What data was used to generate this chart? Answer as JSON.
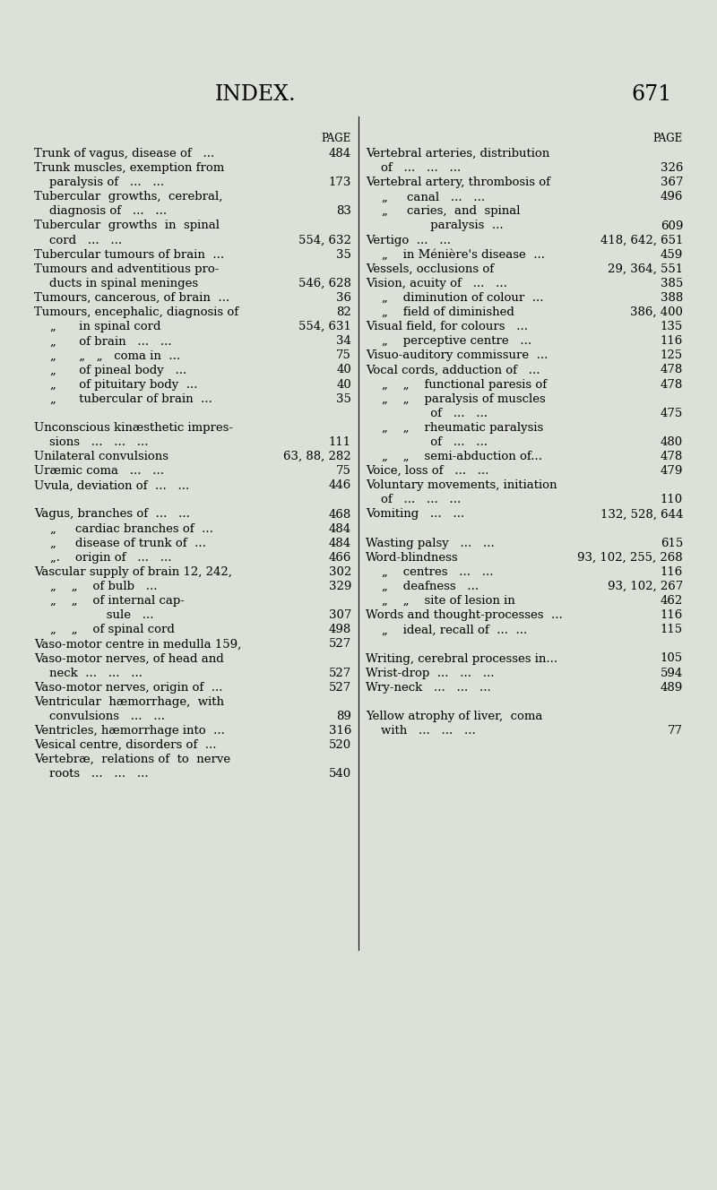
{
  "background_color": "#dde0d8",
  "title": "INDEX.",
  "page_number": "671",
  "fig_width": 8.0,
  "fig_height": 13.28,
  "dpi": 100,
  "left_entries": [
    {
      "text": "Trunk of vagus, disease of   ...",
      "page": "484",
      "indent": 0
    },
    {
      "text": "Trunk muscles, exemption from",
      "page": "",
      "indent": 0
    },
    {
      "text": "    paralysis of   ...   ...",
      "page": "173",
      "indent": 0
    },
    {
      "text": "Tubercular  growths,  cerebral,",
      "page": "",
      "indent": 0
    },
    {
      "text": "    diagnosis of   ...   ...",
      "page": "83",
      "indent": 0
    },
    {
      "text": "Tubercular  growths  in  spinal",
      "page": "",
      "indent": 0
    },
    {
      "text": "    cord   ...   ...",
      "page": "554, 632",
      "indent": 0
    },
    {
      "text": "Tubercular tumours of brain  ...",
      "page": "35",
      "indent": 0
    },
    {
      "text": "Tumours and adventitious pro-",
      "page": "",
      "indent": 0
    },
    {
      "text": "    ducts in spinal meninges",
      "page": "546, 628",
      "indent": 0
    },
    {
      "text": "Tumours, cancerous, of brain  ...",
      "page": "36",
      "indent": 0
    },
    {
      "text": "Tumours, encephalic, diagnosis of",
      "page": "82",
      "indent": 0
    },
    {
      "text": "„      in spinal cord",
      "page": "554, 631",
      "indent": 1
    },
    {
      "text": "„      of brain   ...   ...",
      "page": "34",
      "indent": 1
    },
    {
      "text": "„      „   „   coma in  ...",
      "page": "75",
      "indent": 1
    },
    {
      "text": "„      of pineal body   ...",
      "page": "40",
      "indent": 1
    },
    {
      "text": "„      of pituitary body  ...",
      "page": "40",
      "indent": 1
    },
    {
      "text": "„      tubercular of brain  ...",
      "page": "35",
      "indent": 1
    },
    {
      "text": "",
      "page": "",
      "indent": 0
    },
    {
      "text": "Unconscious kinæsthetic impres-",
      "page": "",
      "indent": 0
    },
    {
      "text": "    sions   ...   ...   ...",
      "page": "111",
      "indent": 0
    },
    {
      "text": "Unilateral convulsions",
      "page": "63, 88, 282",
      "indent": 0
    },
    {
      "text": "Uræmic coma   ...   ...",
      "page": "75",
      "indent": 0
    },
    {
      "text": "Uvula, deviation of  ...   ...",
      "page": "446",
      "indent": 0
    },
    {
      "text": "",
      "page": "",
      "indent": 0
    },
    {
      "text": "Vagus, branches of  ...   ...",
      "page": "468",
      "indent": 0
    },
    {
      "text": "„     cardiac branches of  ...",
      "page": "484",
      "indent": 1
    },
    {
      "text": "„     disease of trunk of  ...",
      "page": "484",
      "indent": 1
    },
    {
      "text": "„.    origin of   ...   ...",
      "page": "466",
      "indent": 1
    },
    {
      "text": "Vascular supply of brain 12, 242,",
      "page": "302",
      "indent": 0
    },
    {
      "text": "„    „    of bulb   ...",
      "page": "329",
      "indent": 1
    },
    {
      "text": "„    „    of internal cap-",
      "page": "",
      "indent": 1
    },
    {
      "text": "                   sule   ...",
      "page": "307",
      "indent": 0
    },
    {
      "text": "„    „    of spinal cord",
      "page": "498",
      "indent": 1
    },
    {
      "text": "Vaso-motor centre in medulla 159,",
      "page": "527",
      "indent": 0
    },
    {
      "text": "Vaso-motor nerves, of head and",
      "page": "",
      "indent": 0
    },
    {
      "text": "    neck  ...   ...   ...",
      "page": "527",
      "indent": 0
    },
    {
      "text": "Vaso-motor nerves, origin of  ...",
      "page": "527",
      "indent": 0
    },
    {
      "text": "Ventricular  hæmorrhage,  with",
      "page": "",
      "indent": 0
    },
    {
      "text": "    convulsions   ...   ...",
      "page": "89",
      "indent": 0
    },
    {
      "text": "Ventricles, hæmorrhage into  ...",
      "page": "316",
      "indent": 0
    },
    {
      "text": "Vesical centre, disorders of  ...",
      "page": "520",
      "indent": 0
    },
    {
      "text": "Vertebræ,  relations of  to  nerve",
      "page": "",
      "indent": 0
    },
    {
      "text": "    roots   ...   ...   ...",
      "page": "540",
      "indent": 0
    }
  ],
  "right_entries": [
    {
      "text": "Vertebral arteries, distribution",
      "page": "",
      "indent": 0
    },
    {
      "text": "    of   ...   ...   ...",
      "page": "326",
      "indent": 0
    },
    {
      "text": "Vertebral artery, thrombosis of",
      "page": "367",
      "indent": 0
    },
    {
      "text": "„     canal   ...   ...",
      "page": "496",
      "indent": 1
    },
    {
      "text": "„     caries,  and  spinal",
      "page": "",
      "indent": 1
    },
    {
      "text": "                 paralysis  ...",
      "page": "609",
      "indent": 0
    },
    {
      "text": "Vertigo  ...   ...",
      "page": "418, 642, 651",
      "indent": 0
    },
    {
      "text": "„    in Ménière's disease  ...",
      "page": "459",
      "indent": 1
    },
    {
      "text": "Vessels, occlusions of",
      "page": "29, 364, 551",
      "indent": 0
    },
    {
      "text": "Vision, acuity of   ...   ...",
      "page": "385",
      "indent": 0
    },
    {
      "text": "„    diminution of colour  ...",
      "page": "388",
      "indent": 1
    },
    {
      "text": "„    field of diminished",
      "page": "386, 400",
      "indent": 1
    },
    {
      "text": "Visual field, for colours   ...",
      "page": "135",
      "indent": 0
    },
    {
      "text": "„    perceptive centre   ...",
      "page": "116",
      "indent": 1
    },
    {
      "text": "Visuo-auditory commissure  ...",
      "page": "125",
      "indent": 0
    },
    {
      "text": "Vocal cords, adduction of   ...",
      "page": "478",
      "indent": 0
    },
    {
      "text": "„    „    functional paresis of",
      "page": "478",
      "indent": 1
    },
    {
      "text": "„    „    paralysis of muscles",
      "page": "",
      "indent": 1
    },
    {
      "text": "                 of   ...   ...",
      "page": "475",
      "indent": 0
    },
    {
      "text": "„    „    rheumatic paralysis",
      "page": "",
      "indent": 1
    },
    {
      "text": "                 of   ...   ...",
      "page": "480",
      "indent": 0
    },
    {
      "text": "„    „    semi-abduction of...",
      "page": "478",
      "indent": 1
    },
    {
      "text": "Voice, loss of   ...   ...",
      "page": "479",
      "indent": 0
    },
    {
      "text": "Voluntary movements, initiation",
      "page": "",
      "indent": 0
    },
    {
      "text": "    of   ...   ...   ...",
      "page": "110",
      "indent": 0
    },
    {
      "text": "Vomiting   ...   ...",
      "page": "132, 528, 644",
      "indent": 0
    },
    {
      "text": "",
      "page": "",
      "indent": 0
    },
    {
      "text": "Wasting palsy   ...   ...",
      "page": "615",
      "indent": 0
    },
    {
      "text": "Word-blindness",
      "page": "93, 102, 255, 268",
      "indent": 0
    },
    {
      "text": "„    centres   ...   ...",
      "page": "116",
      "indent": 1
    },
    {
      "text": "„    deafness   ...",
      "page": "93, 102, 267",
      "indent": 1
    },
    {
      "text": "„    „    site of lesion in",
      "page": "462",
      "indent": 1
    },
    {
      "text": "Words and thought-processes  ...",
      "page": "116",
      "indent": 0
    },
    {
      "text": "„    ideal, recall of  ...  ...",
      "page": "115",
      "indent": 1
    },
    {
      "text": "",
      "page": "",
      "indent": 0
    },
    {
      "text": "Writing, cerebral processes in...",
      "page": "105",
      "indent": 0
    },
    {
      "text": "Wrist-drop  ...   ...   ...",
      "page": "594",
      "indent": 0
    },
    {
      "text": "Wry-neck   ...   ...   ...",
      "page": "489",
      "indent": 0
    },
    {
      "text": "",
      "page": "",
      "indent": 0
    },
    {
      "text": "Yellow atrophy of liver,  coma",
      "page": "",
      "indent": 0
    },
    {
      "text": "    with   ...   ...   ...",
      "page": "77",
      "indent": 0
    }
  ]
}
